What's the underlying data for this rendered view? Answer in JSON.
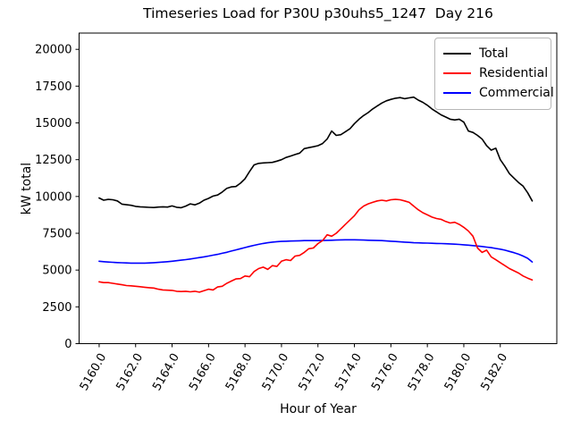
{
  "figure": {
    "title": "Timeseries Load for P30U p30uhs5_1247  Day 216"
  },
  "chart_data": {
    "type": "line",
    "title": "Timeseries Load for P30U p30uhs5_1247  Day 216",
    "xlabel": "Hour of Year",
    "ylabel": "kW total",
    "grid": false,
    "legend_position": "upper right",
    "xlim": [
      5158.9,
      5185.1
    ],
    "ylim": [
      0,
      21100
    ],
    "x_start": 5160.0,
    "x_step": 0.25,
    "xticks": [
      5160,
      5162,
      5164,
      5166,
      5168,
      5170,
      5172,
      5174,
      5176,
      5178,
      5180,
      5182
    ],
    "xtick_labels": [
      "5160.0",
      "5162.0",
      "5164.0",
      "5166.0",
      "5168.0",
      "5170.0",
      "5172.0",
      "5174.0",
      "5176.0",
      "5178.0",
      "5180.0",
      "5182.0"
    ],
    "yticks": [
      0,
      2500,
      5000,
      7500,
      10000,
      12500,
      15000,
      17500,
      20000
    ],
    "ytick_labels": [
      "0",
      "2500",
      "5000",
      "7500",
      "10000",
      "12500",
      "15000",
      "17500",
      "20000"
    ],
    "series": [
      {
        "name": "Total",
        "color": "#000000",
        "values": [
          9900,
          9750,
          9800,
          9780,
          9700,
          9480,
          9440,
          9400,
          9330,
          9300,
          9280,
          9260,
          9250,
          9280,
          9300,
          9280,
          9360,
          9270,
          9240,
          9350,
          9500,
          9430,
          9550,
          9750,
          9870,
          10030,
          10100,
          10300,
          10550,
          10650,
          10680,
          10900,
          11200,
          11700,
          12150,
          12250,
          12280,
          12300,
          12320,
          12400,
          12500,
          12650,
          12750,
          12850,
          12950,
          13250,
          13320,
          13380,
          13450,
          13600,
          13900,
          14450,
          14150,
          14200,
          14400,
          14600,
          14950,
          15250,
          15500,
          15700,
          15950,
          16150,
          16350,
          16500,
          16600,
          16680,
          16720,
          16650,
          16700,
          16750,
          16550,
          16400,
          16200,
          15950,
          15750,
          15550,
          15400,
          15250,
          15200,
          15250,
          15050,
          14450,
          14350,
          14150,
          13900,
          13450,
          13150,
          13280,
          12500,
          12050,
          11550,
          11250,
          10950,
          10700,
          10250,
          9700
        ]
      },
      {
        "name": "Residential",
        "color": "#ff0000",
        "values": [
          4200,
          4150,
          4150,
          4100,
          4050,
          4000,
          3950,
          3930,
          3900,
          3870,
          3830,
          3800,
          3780,
          3700,
          3650,
          3630,
          3620,
          3560,
          3540,
          3560,
          3520,
          3560,
          3500,
          3600,
          3700,
          3650,
          3850,
          3900,
          4100,
          4250,
          4400,
          4420,
          4600,
          4550,
          4900,
          5100,
          5200,
          5050,
          5300,
          5250,
          5600,
          5700,
          5650,
          5950,
          6000,
          6200,
          6450,
          6500,
          6800,
          7000,
          7400,
          7300,
          7500,
          7800,
          8100,
          8400,
          8700,
          9100,
          9350,
          9500,
          9600,
          9700,
          9750,
          9700,
          9780,
          9800,
          9780,
          9700,
          9600,
          9350,
          9100,
          8900,
          8750,
          8600,
          8500,
          8450,
          8300,
          8200,
          8250,
          8100,
          7900,
          7650,
          7300,
          6500,
          6200,
          6350,
          5900,
          5700,
          5500,
          5300,
          5100,
          4950,
          4800,
          4600,
          4450,
          4330
        ]
      },
      {
        "name": "Commercial",
        "color": "#0000ff",
        "values": [
          5600,
          5570,
          5545,
          5525,
          5510,
          5495,
          5485,
          5475,
          5470,
          5470,
          5475,
          5485,
          5500,
          5520,
          5545,
          5570,
          5600,
          5635,
          5670,
          5710,
          5750,
          5800,
          5850,
          5900,
          5950,
          6010,
          6070,
          6140,
          6210,
          6290,
          6370,
          6450,
          6530,
          6610,
          6680,
          6750,
          6810,
          6860,
          6900,
          6930,
          6950,
          6960,
          6970,
          6980,
          6990,
          7000,
          7000,
          7000,
          7000,
          7010,
          7020,
          7030,
          7040,
          7050,
          7060,
          7060,
          7060,
          7050,
          7040,
          7030,
          7020,
          7010,
          7000,
          6980,
          6960,
          6940,
          6920,
          6900,
          6880,
          6860,
          6850,
          6840,
          6830,
          6820,
          6810,
          6800,
          6790,
          6780,
          6760,
          6740,
          6720,
          6690,
          6660,
          6630,
          6600,
          6560,
          6520,
          6470,
          6420,
          6350,
          6270,
          6180,
          6080,
          5950,
          5800,
          5550
        ]
      }
    ]
  }
}
